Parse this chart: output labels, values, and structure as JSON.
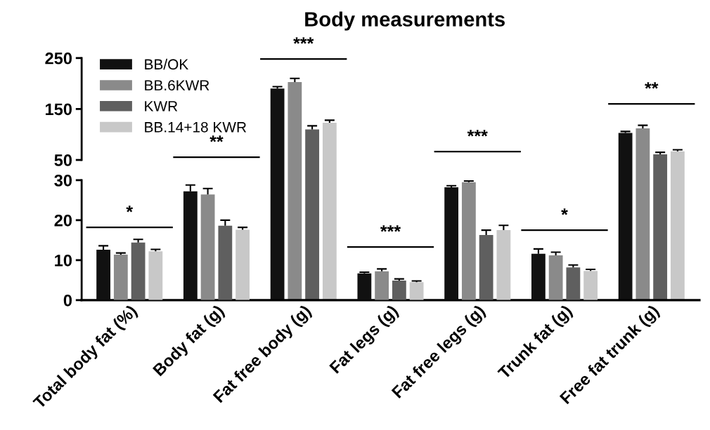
{
  "chart_data": [
    {
      "type": "bar",
      "title": "Body measurements",
      "categories": [
        null,
        null,
        null,
        null,
        null,
        null,
        null
      ],
      "series": [
        {
          "name": "BB/OK",
          "color": "#111111",
          "values": [
            null,
            null,
            190,
            null,
            null,
            null,
            103
          ],
          "errors": [
            null,
            null,
            4,
            null,
            null,
            null,
            3
          ]
        },
        {
          "name": "BB.6KWR",
          "color": "#8a8a8a",
          "values": [
            null,
            null,
            203,
            null,
            null,
            null,
            112
          ],
          "errors": [
            null,
            null,
            7,
            null,
            null,
            null,
            6
          ]
        },
        {
          "name": "KWR",
          "color": "#5f5f5f",
          "values": [
            null,
            null,
            110,
            null,
            null,
            null,
            61
          ],
          "errors": [
            null,
            null,
            7,
            null,
            null,
            null,
            4
          ]
        },
        {
          "name": "BB.14+18 KWR",
          "color": "#c8c8c8",
          "values": [
            null,
            null,
            123,
            null,
            null,
            null,
            67
          ],
          "errors": [
            null,
            null,
            5,
            null,
            null,
            null,
            3
          ]
        }
      ],
      "ylim": [
        50,
        250
      ],
      "yticks": [
        50,
        150,
        250
      ],
      "tick_labels": "y",
      "legend": "top left"
    },
    {
      "type": "bar",
      "categories": [
        "Total body fat (%)",
        "Body fat (g)",
        "Fat free body (g)",
        "Fat legs (g)",
        "Fat free legs (g)",
        "Trunk fat (g)",
        "Free fat trunk (g)"
      ],
      "series": [
        {
          "color": "#111111",
          "values": [
            12.6,
            27.2,
            null,
            6.7,
            28.2,
            11.6,
            null
          ],
          "errors": [
            1.0,
            1.6,
            null,
            0.3,
            0.4,
            1.2,
            null
          ]
        },
        {
          "color": "#8a8a8a",
          "values": [
            11.4,
            26.4,
            null,
            7.2,
            29.5,
            11.2,
            null
          ],
          "errors": [
            0.4,
            1.5,
            null,
            0.6,
            0.3,
            0.8,
            null
          ]
        },
        {
          "color": "#5f5f5f",
          "values": [
            14.4,
            18.6,
            null,
            4.9,
            16.3,
            8.2,
            null
          ],
          "errors": [
            0.8,
            1.4,
            null,
            0.4,
            1.2,
            0.6,
            null
          ]
        },
        {
          "color": "#c8c8c8",
          "values": [
            12.2,
            17.6,
            null,
            4.5,
            17.5,
            7.3,
            null
          ],
          "errors": [
            0.5,
            0.6,
            null,
            0.3,
            1.2,
            0.4,
            null
          ]
        }
      ],
      "ylim": [
        0,
        30
      ],
      "yticks": [
        0,
        10,
        20,
        30
      ],
      "annotations": [
        "*",
        "**",
        "***",
        "***",
        "***",
        "*",
        "**"
      ]
    }
  ]
}
